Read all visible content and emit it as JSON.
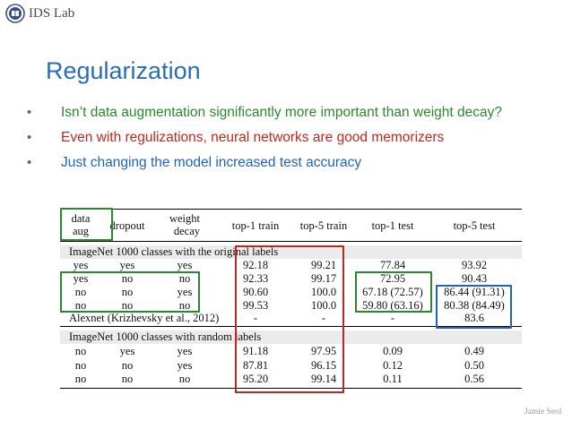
{
  "header": {
    "lab_name": "IDS Lab",
    "logo_icon": "university-seal-icon"
  },
  "slide": {
    "title": "Regularization",
    "bullets": [
      {
        "text": "Isn’t data augmentation significantly more important than weight decay?",
        "color": "#2a8a2a"
      },
      {
        "text": "Even with regulizations, neural networks are good memorizers",
        "color": "#c0281e"
      },
      {
        "text": "Just changing the model increased test accuracy",
        "color": "#1f63c2"
      }
    ],
    "bullet_glyph": "•"
  },
  "table": {
    "headers": [
      "data aug",
      "dropout",
      "weight decay",
      "top-1 train",
      "top-5 train",
      "top-1 test",
      "top-5 test"
    ],
    "header_lines": {
      "data_aug": [
        "data",
        "aug"
      ],
      "weight_decay": [
        "weight",
        "decay"
      ]
    },
    "section1": "ImageNet 1000 classes with the original labels",
    "section1_rows": [
      [
        "yes",
        "yes",
        "yes",
        "92.18",
        "99.21",
        "77.84",
        "93.92"
      ],
      [
        "yes",
        "no",
        "no",
        "92.33",
        "99.17",
        "72.95",
        "90.43"
      ],
      [
        "no",
        "no",
        "yes",
        "90.60",
        "100.0",
        "67.18 (72.57)",
        "86.44 (91.31)"
      ],
      [
        "no",
        "no",
        "no",
        "99.53",
        "100.0",
        "59.80 (63.16)",
        "80.38 (84.49)"
      ]
    ],
    "alexnet_row": [
      "Alexnet (Krizhevsky et al., 2012)",
      "-",
      "-",
      "-",
      "83.6"
    ],
    "section2": "ImageNet 1000 classes with random labels",
    "section2_rows": [
      [
        "no",
        "yes",
        "yes",
        "91.18",
        "97.95",
        "0.09",
        "0.49"
      ],
      [
        "no",
        "no",
        "yes",
        "87.81",
        "96.15",
        "0.12",
        "0.50"
      ],
      [
        "no",
        "no",
        "no",
        "95.20",
        "99.14",
        "0.11",
        "0.56"
      ]
    ],
    "highlight_colors": {
      "green": "#2a8a2a",
      "red": "#c0281e",
      "blue": "#1f63c2"
    }
  },
  "footer": {
    "author": "Jamie Seol"
  }
}
